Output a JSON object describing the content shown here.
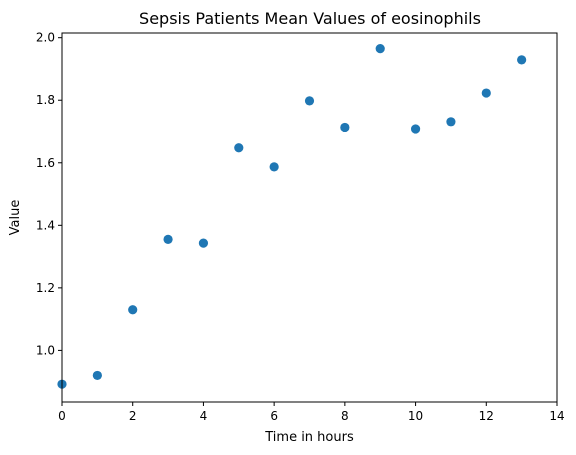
{
  "chart_data": {
    "type": "scatter",
    "title": "Sepsis Patients Mean Values of eosinophils",
    "xlabel": "Time in hours",
    "ylabel": "Value",
    "xlim": [
      0,
      14
    ],
    "ylim": [
      0.835,
      2.015
    ],
    "xticks": [
      0,
      2,
      4,
      6,
      8,
      10,
      12,
      14
    ],
    "yticks": [
      1.0,
      1.2,
      1.4,
      1.6,
      1.8,
      2.0
    ],
    "grid": false,
    "color": "#1f77b4",
    "points": [
      {
        "x": 0,
        "y": 0.892
      },
      {
        "x": 1,
        "y": 0.92
      },
      {
        "x": 2,
        "y": 1.13
      },
      {
        "x": 3,
        "y": 1.355
      },
      {
        "x": 4,
        "y": 1.343
      },
      {
        "x": 5,
        "y": 1.648
      },
      {
        "x": 6,
        "y": 1.587
      },
      {
        "x": 7,
        "y": 1.798
      },
      {
        "x": 8,
        "y": 1.713
      },
      {
        "x": 9,
        "y": 1.965
      },
      {
        "x": 10,
        "y": 1.708
      },
      {
        "x": 11,
        "y": 1.731
      },
      {
        "x": 12,
        "y": 1.823
      },
      {
        "x": 13,
        "y": 1.929
      }
    ]
  }
}
